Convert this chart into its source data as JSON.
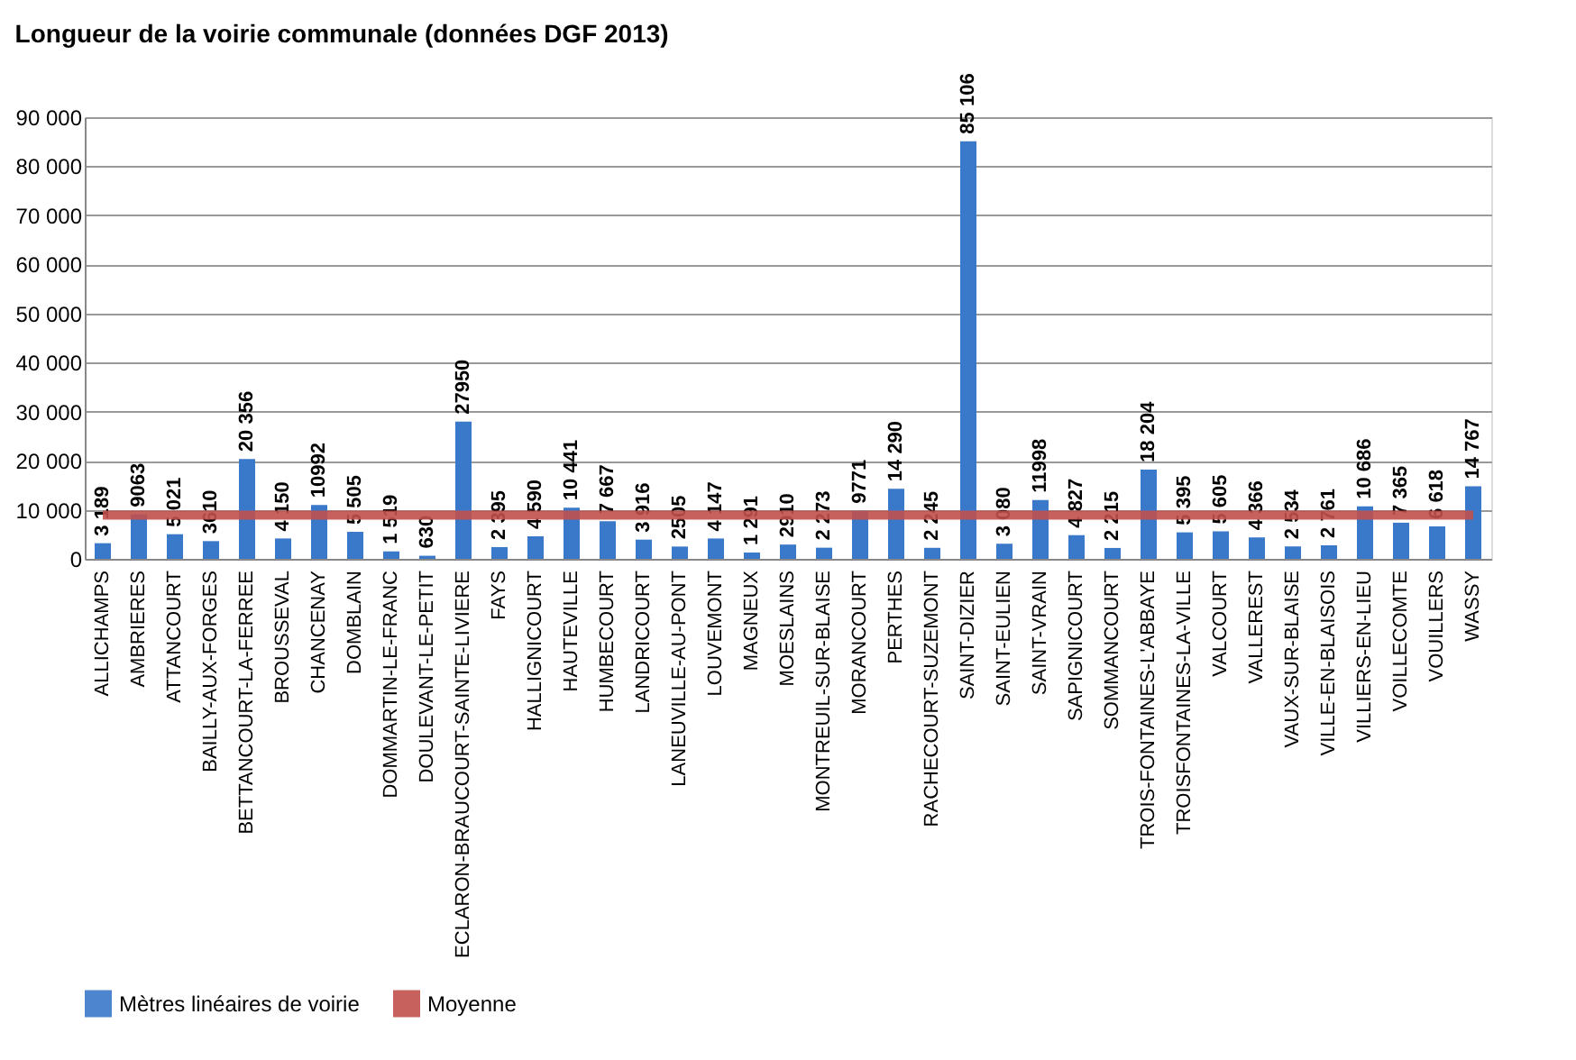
{
  "chart_data": {
    "type": "bar",
    "title": "Longueur de la voirie communale (données DGF 2013)",
    "categories": [
      "ALLICHAMPS",
      "AMBRIERES",
      "ATTANCOURT",
      "BAILLY-AUX-FORGES",
      "BETTANCOURT-LA-FERREE",
      "BROUSSEVAL",
      "CHANCENAY",
      "DOMBLAIN",
      "DOMMARTIN-LE-FRANC",
      "DOULEVANT-LE-PETIT",
      "ECLARON-BRAUCOURT-SAINTE-LIVIERE",
      "FAYS",
      "HALLIGNICOURT",
      "HAUTEVILLE",
      "HUMBECOURT",
      "LANDRICOURT",
      "LANEUVILLE-AU-PONT",
      "LOUVEMONT",
      "MAGNEUX",
      "MOESLAINS",
      "MONTREUIL-SUR-BLAISE",
      "MORANCOURT",
      "PERTHES",
      "RACHECOURT-SUZEMONT",
      "SAINT-DIZIER",
      "SAINT-EULIEN",
      "SAINT-VRAIN",
      "SAPIGNICOURT",
      "SOMMANCOURT",
      "TROIS-FONTAINES-L'ABBAYE",
      "TROISFONTAINES-LA-VILLE",
      "VALCOURT",
      "VALLEREST",
      "VAUX-SUR-BLAISE",
      "VILLE-EN-BLAISOIS",
      "VILLIERS-EN-LIEU",
      "VOILLECOMTE",
      "VOUILLERS",
      "WASSY"
    ],
    "series": [
      {
        "name": "Mètres linéaires de voirie",
        "type": "bar",
        "color": "#3a78c9",
        "values": [
          3189,
          9063,
          5021,
          3610,
          20356,
          4150,
          10992,
          5505,
          1519,
          630,
          27950,
          2395,
          4590,
          10441,
          7667,
          3916,
          2505,
          4147,
          1291,
          2910,
          2273,
          9771,
          14290,
          2245,
          85106,
          3080,
          11998,
          4827,
          2215,
          18204,
          5395,
          5605,
          4366,
          2534,
          2761,
          10686,
          7365,
          6618,
          14767
        ],
        "value_labels": [
          "3 189",
          "9063",
          "5 021",
          "3610",
          "20 356",
          "4 150",
          "10992",
          "5 505",
          "1 519",
          "630",
          "27950",
          "2 395",
          "4 590",
          "10 441",
          "7 667",
          "3 916",
          "2505",
          "4 147",
          "1 291",
          "2910",
          "2 273",
          "9771",
          "14 290",
          "2 245",
          "85 106",
          "3 080",
          "11998",
          "4 827",
          "2 215",
          "18 204",
          "5 395",
          "5 605",
          "4 366",
          "2 534",
          "2 761",
          "10 686",
          "7 365",
          "6 618",
          "14 767"
        ]
      },
      {
        "name": "Moyenne",
        "type": "line",
        "color": "#c0504d",
        "values": [
          8900,
          8900,
          8900,
          8900,
          8900,
          8900,
          8900,
          8900,
          8900,
          8900,
          8900,
          8900,
          8900,
          8900,
          8900,
          8900,
          8900,
          8900,
          8900,
          8900,
          8900,
          8900,
          8900,
          8900,
          8900,
          8900,
          8900,
          8900,
          8900,
          8900,
          8900,
          8900,
          8900,
          8900,
          8900,
          8900,
          8900,
          8900,
          8900
        ]
      }
    ],
    "ylim": [
      0,
      90000
    ],
    "yticks": [
      0,
      {
        "value": 10000,
        "label": "10 000"
      },
      {
        "value": 20000,
        "label": "20 000"
      },
      {
        "value": 30000,
        "label": "30 000"
      },
      {
        "value": 40000,
        "label": "40 000"
      },
      {
        "value": 50000,
        "label": "50 000"
      },
      {
        "value": 60000,
        "label": "60 000"
      },
      {
        "value": 70000,
        "label": "70 000"
      },
      {
        "value": 80000,
        "label": "80 000"
      },
      {
        "value": 90000,
        "label": "90 000"
      }
    ],
    "grid": "y",
    "legend": "bottom"
  }
}
